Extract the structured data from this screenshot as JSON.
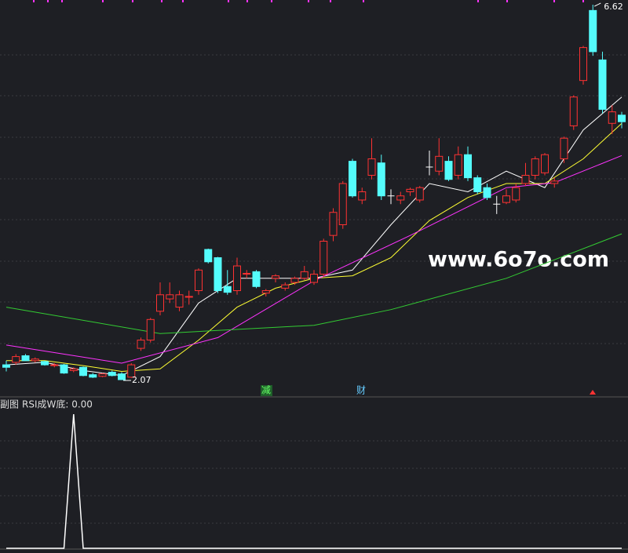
{
  "chart_data": {
    "type": "candlestick",
    "ohlc": [
      [
        2.25,
        2.3,
        2.17,
        2.22
      ],
      [
        2.28,
        2.38,
        2.25,
        2.35
      ],
      [
        2.36,
        2.38,
        2.3,
        2.3
      ],
      [
        2.3,
        2.34,
        2.28,
        2.32
      ],
      [
        2.29,
        2.3,
        2.24,
        2.25
      ],
      [
        2.24,
        2.27,
        2.22,
        2.25
      ],
      [
        2.25,
        2.26,
        2.14,
        2.15
      ],
      [
        2.18,
        2.22,
        2.16,
        2.2
      ],
      [
        2.22,
        2.23,
        2.11,
        2.12
      ],
      [
        2.13,
        2.15,
        2.09,
        2.1
      ],
      [
        2.11,
        2.15,
        2.1,
        2.14
      ],
      [
        2.16,
        2.18,
        2.11,
        2.12
      ],
      [
        2.14,
        2.16,
        2.07,
        2.07
      ],
      [
        2.1,
        2.27,
        2.09,
        2.25
      ],
      [
        2.45,
        2.58,
        2.42,
        2.55
      ],
      [
        2.55,
        2.82,
        2.52,
        2.8
      ],
      [
        2.9,
        3.25,
        2.85,
        3.1
      ],
      [
        3.05,
        3.25,
        3.0,
        3.1
      ],
      [
        2.95,
        3.15,
        2.9,
        3.1
      ],
      [
        3.07,
        3.15,
        2.98,
        3.08
      ],
      [
        3.15,
        3.42,
        3.1,
        3.4
      ],
      [
        3.65,
        3.66,
        3.48,
        3.5
      ],
      [
        3.55,
        3.56,
        3.12,
        3.15
      ],
      [
        3.2,
        3.4,
        3.1,
        3.13
      ],
      [
        3.15,
        3.55,
        3.1,
        3.45
      ],
      [
        3.35,
        3.4,
        3.3,
        3.36
      ],
      [
        3.38,
        3.4,
        3.18,
        3.2
      ],
      [
        3.12,
        3.17,
        3.08,
        3.15
      ],
      [
        3.3,
        3.35,
        3.25,
        3.33
      ],
      [
        3.18,
        3.25,
        3.15,
        3.22
      ],
      [
        3.25,
        3.32,
        3.22,
        3.3
      ],
      [
        3.3,
        3.45,
        3.28,
        3.38
      ],
      [
        3.25,
        3.4,
        3.22,
        3.35
      ],
      [
        3.35,
        3.78,
        3.32,
        3.75
      ],
      [
        3.82,
        4.15,
        3.75,
        4.1
      ],
      [
        3.95,
        4.48,
        3.9,
        4.45
      ],
      [
        4.72,
        4.75,
        4.28,
        4.3
      ],
      [
        4.25,
        4.4,
        4.2,
        4.35
      ],
      [
        4.55,
        5.0,
        4.5,
        4.75
      ],
      [
        4.7,
        4.8,
        4.25,
        4.3
      ],
      [
        4.3,
        4.38,
        4.2,
        4.3
      ],
      [
        4.25,
        4.35,
        4.2,
        4.3
      ],
      [
        4.35,
        4.4,
        4.3,
        4.38
      ],
      [
        4.25,
        4.42,
        4.22,
        4.4
      ],
      [
        4.65,
        4.85,
        4.55,
        4.65
      ],
      [
        4.6,
        5.0,
        4.55,
        4.78
      ],
      [
        4.72,
        4.78,
        4.48,
        4.5
      ],
      [
        4.55,
        4.9,
        4.5,
        4.8
      ],
      [
        4.8,
        4.9,
        4.48,
        4.52
      ],
      [
        4.52,
        4.55,
        4.32,
        4.35
      ],
      [
        4.4,
        4.45,
        4.25,
        4.28
      ],
      [
        4.2,
        4.3,
        4.08,
        4.2
      ],
      [
        4.22,
        4.38,
        4.2,
        4.3
      ],
      [
        4.25,
        4.45,
        4.22,
        4.4
      ],
      [
        4.45,
        4.7,
        4.42,
        4.55
      ],
      [
        4.55,
        4.78,
        4.5,
        4.75
      ],
      [
        4.58,
        4.82,
        4.55,
        4.8
      ],
      [
        4.45,
        4.52,
        4.4,
        4.48
      ],
      [
        4.75,
        5.02,
        4.7,
        5.0
      ],
      [
        5.15,
        5.52,
        5.1,
        5.5
      ],
      [
        5.7,
        6.12,
        5.65,
        6.1
      ],
      [
        6.55,
        6.62,
        6.0,
        6.05
      ],
      [
        5.95,
        6.05,
        5.3,
        5.35
      ],
      [
        5.18,
        5.4,
        5.05,
        5.32
      ],
      [
        5.28,
        5.32,
        5.12,
        5.2
      ]
    ],
    "up_color": "#ff3232",
    "down_color": "#54fcfc",
    "flat_color": "#ffffff",
    "ylim": [
      2.07,
      6.62
    ],
    "lines": [
      {
        "color": "#ffffff",
        "x": [
          0,
          4,
          8,
          12,
          16,
          20,
          24,
          28,
          32,
          36,
          40,
          44,
          48,
          52,
          56,
          60,
          64
        ],
        "values": [
          2.25,
          2.28,
          2.18,
          2.12,
          2.35,
          3.0,
          3.3,
          3.3,
          3.3,
          3.4,
          3.95,
          4.45,
          4.35,
          4.6,
          4.4,
          5.1,
          5.5
        ]
      },
      {
        "color": "#ffff33",
        "x": [
          0,
          4,
          8,
          12,
          16,
          20,
          24,
          28,
          32,
          36,
          40,
          44,
          48,
          52,
          56,
          60,
          64
        ],
        "values": [
          2.3,
          2.3,
          2.24,
          2.17,
          2.2,
          2.55,
          2.95,
          3.18,
          3.3,
          3.33,
          3.55,
          4.0,
          4.28,
          4.45,
          4.45,
          4.75,
          5.18
        ]
      },
      {
        "color": "#ff33ff",
        "x": [
          0,
          12,
          22,
          32,
          42,
          52,
          57,
          64
        ],
        "values": [
          2.49,
          2.27,
          2.58,
          3.27,
          3.82,
          4.4,
          4.46,
          4.79
        ]
      },
      {
        "color": "#33cc33",
        "x": [
          0,
          16,
          32,
          40,
          52,
          64
        ],
        "values": [
          2.95,
          2.63,
          2.73,
          2.92,
          3.3,
          3.84
        ]
      }
    ],
    "high_label": "6.62",
    "low_label": "2.07",
    "watermark": "www.6o7o.com",
    "markers": [
      "减",
      "财"
    ],
    "lower": {
      "panel_title": "副图",
      "indicator_label": "RSI成W底: 0.00",
      "color": "#ffffff",
      "x": [
        0,
        6,
        7,
        8,
        64
      ],
      "values": [
        0,
        0,
        1,
        0,
        0
      ],
      "ylim": [
        0,
        1
      ]
    }
  }
}
